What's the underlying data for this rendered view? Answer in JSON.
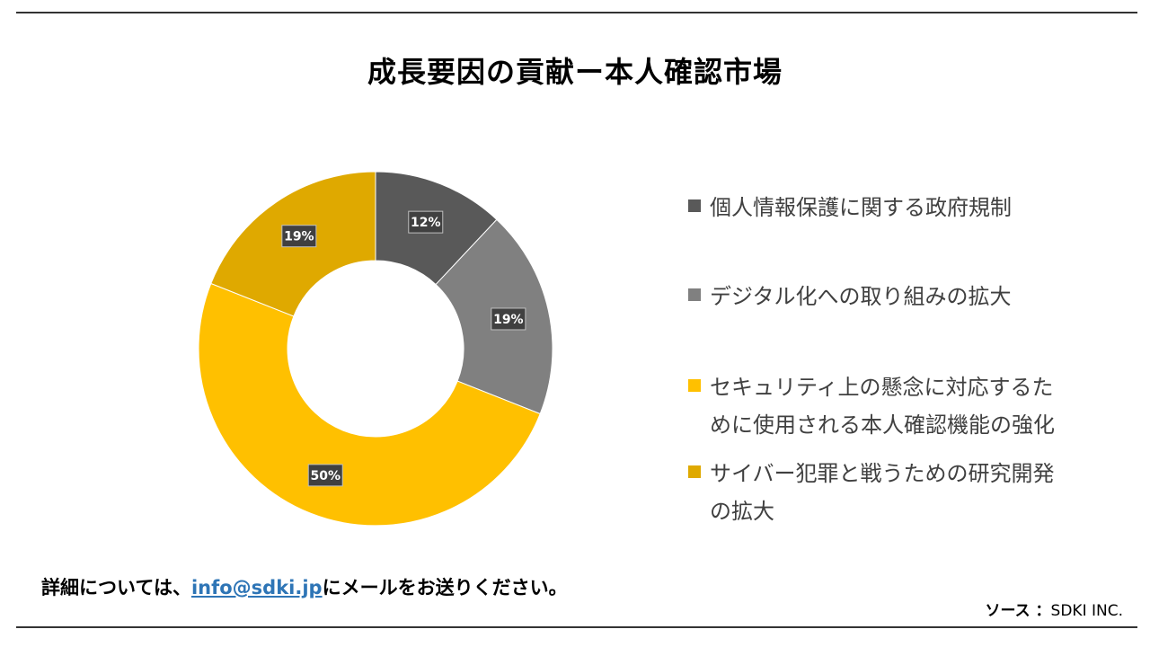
{
  "title": "成長要因の貢献ー本人確認市場",
  "chart_data": {
    "type": "pie",
    "donut": true,
    "categories": [
      "個人情報保護に関する政府規制",
      "デジタル化への取り組みの拡大",
      "セキュリティ上の懸念に対応するために使用される本人確認機能の強化",
      "サイバー犯罪と戦うための研究開発の拡大"
    ],
    "values": [
      12,
      19,
      50,
      19
    ],
    "labels": [
      "12%",
      "19%",
      "50%",
      "19%"
    ],
    "colors": [
      "#595959",
      "#808080",
      "#ffc000",
      "#dfa900"
    ],
    "legend_position": "right"
  },
  "legend": [
    {
      "line1": "個人情報保護に関する政府規制",
      "line2": ""
    },
    {
      "line1": "デジタル化への取り組みの拡大",
      "line2": ""
    },
    {
      "line1": "セキュリティ上の懸念に対応するた",
      "line2": "めに使用される本人確認機能の強化"
    },
    {
      "line1": "サイバー犯罪と戦うための研究開発",
      "line2": "の拡大"
    }
  ],
  "footer": {
    "prefix": "詳細については、",
    "email": "info@sdki.jp",
    "suffix": "にメールをお送りください。"
  },
  "source": {
    "label": "ソース ：",
    "value": "SDKI INC."
  }
}
